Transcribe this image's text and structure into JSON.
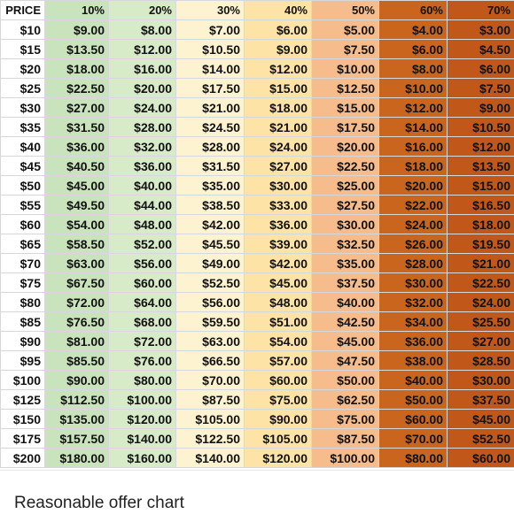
{
  "headers": [
    "PRICE",
    "10%",
    "20%",
    "30%",
    "40%",
    "50%",
    "60%",
    "70%"
  ],
  "column_colors": [
    "#ffffff",
    "#c9e3bc",
    "#d8ebc9",
    "#fdf3d0",
    "#fde4a6",
    "#f7bc8c",
    "#c9651d",
    "#c2571a"
  ],
  "rows": [
    [
      "$10",
      "$9.00",
      "$8.00",
      "$7.00",
      "$6.00",
      "$5.00",
      "$4.00",
      "$3.00"
    ],
    [
      "$15",
      "$13.50",
      "$12.00",
      "$10.50",
      "$9.00",
      "$7.50",
      "$6.00",
      "$4.50"
    ],
    [
      "$20",
      "$18.00",
      "$16.00",
      "$14.00",
      "$12.00",
      "$10.00",
      "$8.00",
      "$6.00"
    ],
    [
      "$25",
      "$22.50",
      "$20.00",
      "$17.50",
      "$15.00",
      "$12.50",
      "$10.00",
      "$7.50"
    ],
    [
      "$30",
      "$27.00",
      "$24.00",
      "$21.00",
      "$18.00",
      "$15.00",
      "$12.00",
      "$9.00"
    ],
    [
      "$35",
      "$31.50",
      "$28.00",
      "$24.50",
      "$21.00",
      "$17.50",
      "$14.00",
      "$10.50"
    ],
    [
      "$40",
      "$36.00",
      "$32.00",
      "$28.00",
      "$24.00",
      "$20.00",
      "$16.00",
      "$12.00"
    ],
    [
      "$45",
      "$40.50",
      "$36.00",
      "$31.50",
      "$27.00",
      "$22.50",
      "$18.00",
      "$13.50"
    ],
    [
      "$50",
      "$45.00",
      "$40.00",
      "$35.00",
      "$30.00",
      "$25.00",
      "$20.00",
      "$15.00"
    ],
    [
      "$55",
      "$49.50",
      "$44.00",
      "$38.50",
      "$33.00",
      "$27.50",
      "$22.00",
      "$16.50"
    ],
    [
      "$60",
      "$54.00",
      "$48.00",
      "$42.00",
      "$36.00",
      "$30.00",
      "$24.00",
      "$18.00"
    ],
    [
      "$65",
      "$58.50",
      "$52.00",
      "$45.50",
      "$39.00",
      "$32.50",
      "$26.00",
      "$19.50"
    ],
    [
      "$70",
      "$63.00",
      "$56.00",
      "$49.00",
      "$42.00",
      "$35.00",
      "$28.00",
      "$21.00"
    ],
    [
      "$75",
      "$67.50",
      "$60.00",
      "$52.50",
      "$45.00",
      "$37.50",
      "$30.00",
      "$22.50"
    ],
    [
      "$80",
      "$72.00",
      "$64.00",
      "$56.00",
      "$48.00",
      "$40.00",
      "$32.00",
      "$24.00"
    ],
    [
      "$85",
      "$76.50",
      "$68.00",
      "$59.50",
      "$51.00",
      "$42.50",
      "$34.00",
      "$25.50"
    ],
    [
      "$90",
      "$81.00",
      "$72.00",
      "$63.00",
      "$54.00",
      "$45.00",
      "$36.00",
      "$27.00"
    ],
    [
      "$95",
      "$85.50",
      "$76.00",
      "$66.50",
      "$57.00",
      "$47.50",
      "$38.00",
      "$28.50"
    ],
    [
      "$100",
      "$90.00",
      "$80.00",
      "$70.00",
      "$60.00",
      "$50.00",
      "$40.00",
      "$30.00"
    ],
    [
      "$125",
      "$112.50",
      "$100.00",
      "$87.50",
      "$75.00",
      "$62.50",
      "$50.00",
      "$37.50"
    ],
    [
      "$150",
      "$135.00",
      "$120.00",
      "$105.00",
      "$90.00",
      "$75.00",
      "$60.00",
      "$45.00"
    ],
    [
      "$175",
      "$157.50",
      "$140.00",
      "$122.50",
      "$105.00",
      "$87.50",
      "$70.00",
      "$52.50"
    ],
    [
      "$200",
      "$180.00",
      "$160.00",
      "$140.00",
      "$120.00",
      "$100.00",
      "$80.00",
      "$60.00"
    ]
  ],
  "caption": "Reasonable offer chart"
}
